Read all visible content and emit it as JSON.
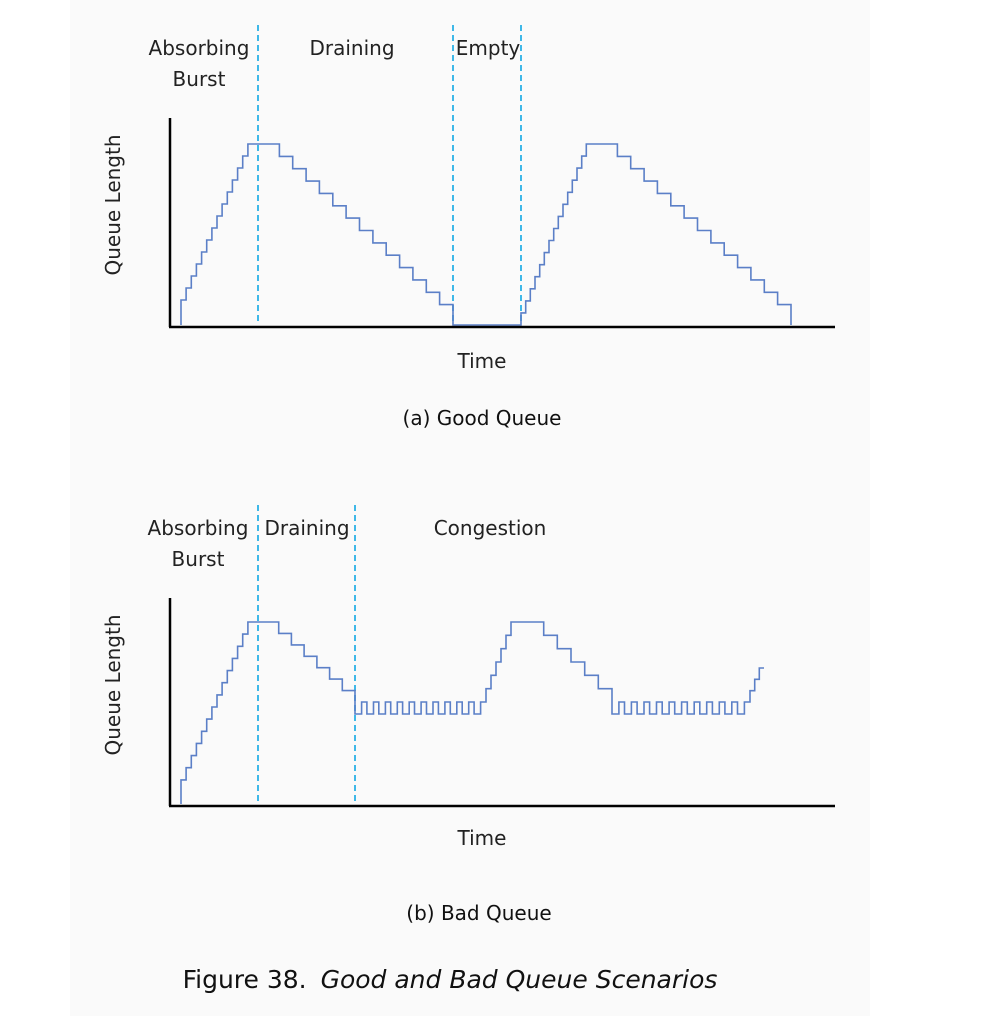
{
  "figure": {
    "number_label": "Figure 38.",
    "title": "Good and Bad Queue Scenarios"
  },
  "panels": [
    {
      "id": "good",
      "caption": "(a) Good Queue",
      "ylabel": "Queue Length",
      "xlabel": "Time",
      "phase_labels": [
        {
          "lines": [
            "Absorbing",
            "Burst"
          ]
        },
        {
          "lines": [
            "Draining"
          ]
        },
        {
          "lines": [
            "Empty"
          ]
        }
      ],
      "phase_boundaries": [
        0.13,
        0.43,
        0.53
      ],
      "queue": {
        "cycles": [
          {
            "start": 0.02,
            "rise_end": 0.13,
            "fall_end": 0.43,
            "peak": 0.88,
            "rise_steps": 15,
            "fall_steps": 15
          }
        ],
        "second_burst": {
          "start": 0.53,
          "rise_end": 0.65,
          "fall_end": 0.94,
          "peak": 0.88,
          "rise_steps": 15,
          "fall_steps": 15
        }
      },
      "colors": {
        "queue": "#5b7fc7",
        "phase_line": "#3fb8e8"
      }
    },
    {
      "id": "bad",
      "caption": "(b) Bad Queue",
      "ylabel": "Queue Length",
      "xlabel": "Time",
      "phase_labels": [
        {
          "lines": [
            "Absorbing",
            "Burst"
          ]
        },
        {
          "lines": [
            "Draining"
          ]
        },
        {
          "lines": [
            "Congestion"
          ]
        }
      ],
      "phase_boundaries": [
        0.13,
        0.28
      ],
      "colors": {
        "queue": "#5b7fc7",
        "phase_line": "#3fb8e8"
      }
    }
  ]
}
